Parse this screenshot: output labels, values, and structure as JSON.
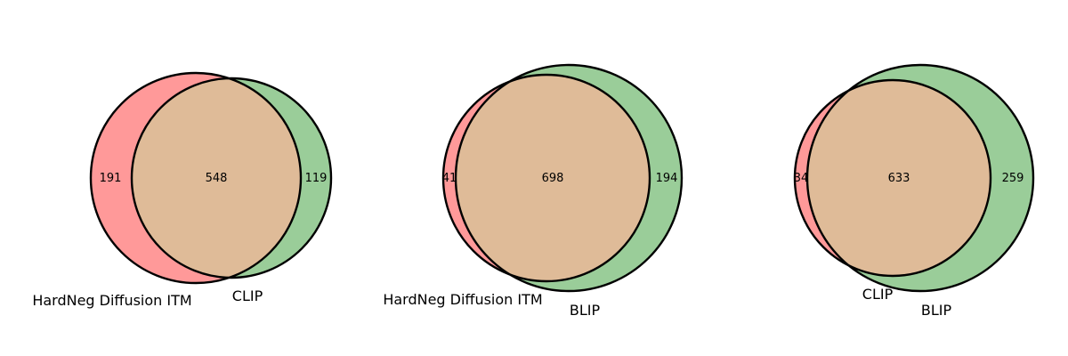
{
  "chart_data": [
    {
      "type": "venn",
      "sets": [
        "HardNeg Diffusion ITM",
        "CLIP"
      ],
      "only_a": 191,
      "intersection": 548,
      "only_b": 119,
      "colors": [
        "#ff9999",
        "#9acd99"
      ],
      "overlap_color": "#dfbb98"
    },
    {
      "type": "venn",
      "sets": [
        "HardNeg Diffusion ITM",
        "BLIP"
      ],
      "only_a": 41,
      "intersection": 698,
      "only_b": 194,
      "colors": [
        "#ff9999",
        "#9acd99"
      ],
      "overlap_color": "#dfbb98"
    },
    {
      "type": "venn",
      "sets": [
        "CLIP",
        "BLIP"
      ],
      "only_a": 34,
      "intersection": 633,
      "only_b": 259,
      "colors": [
        "#ff9999",
        "#9acd99"
      ],
      "overlap_color": "#dfbb98"
    }
  ]
}
